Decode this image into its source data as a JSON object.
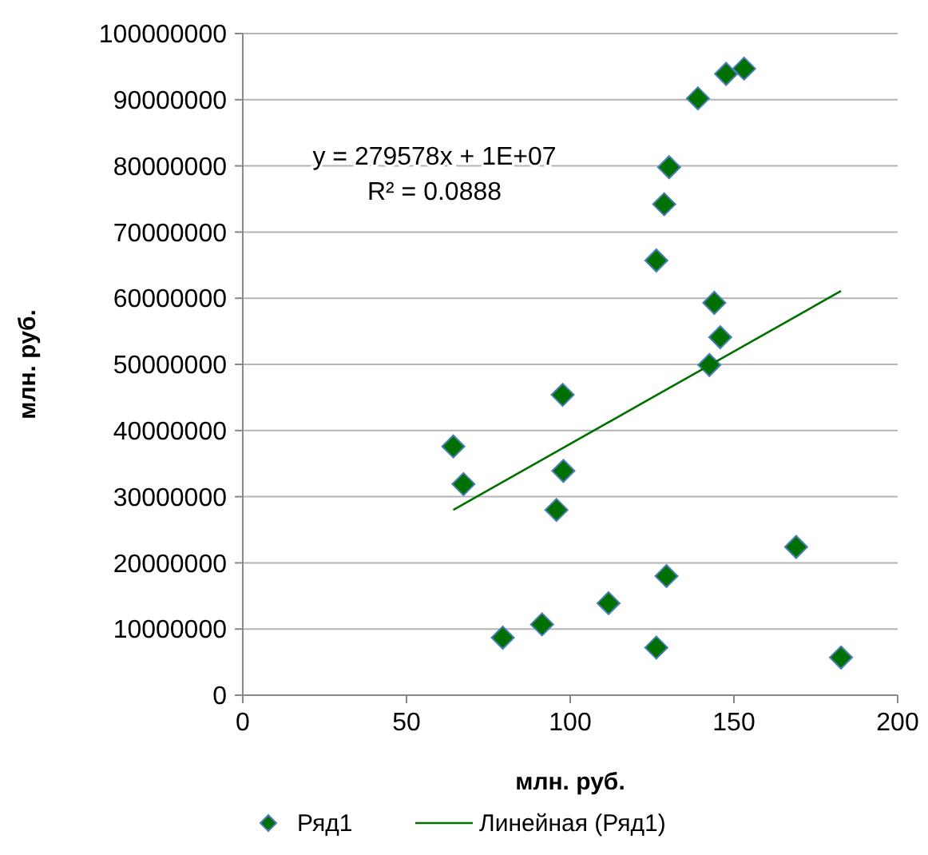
{
  "chart_data": {
    "type": "scatter",
    "xlabel": "млн. руб.",
    "ylabel": "млн. руб.",
    "xlim": [
      0,
      200
    ],
    "xticks": [
      0,
      50,
      100,
      150,
      200
    ],
    "ylim": [
      0,
      100000000
    ],
    "yticks": [
      0,
      10000000,
      20000000,
      30000000,
      40000000,
      50000000,
      60000000,
      70000000,
      80000000,
      90000000,
      100000000
    ],
    "grid": "y",
    "legend": "bottom",
    "marker": "diamond",
    "annotations": [
      "y = 279578x + 1E+07",
      "R² = 0.0888"
    ],
    "series": [
      {
        "name": "Ряд1",
        "color": "#007000",
        "x": [
          64.3,
          67.4,
          79.4,
          91.4,
          97.7,
          97.9,
          95.8,
          111.7,
          126.3,
          129.4,
          126.3,
          128.7,
          130.2,
          139,
          147.6,
          153.1,
          144,
          145.8,
          142.5,
          169,
          182.7
        ],
        "values": [
          37600000,
          31900000,
          8700000,
          10700000,
          45400000,
          33900000,
          28000000,
          13900000,
          7200000,
          18000000,
          65700000,
          74200000,
          79800000,
          90200000,
          93900000,
          94700000,
          59300000,
          54100000,
          49900000,
          22400000,
          5700000
        ]
      },
      {
        "name": "Линейная (Ряд1)",
        "type": "line",
        "color": "#007000",
        "line_style": "solid",
        "marker": "none",
        "x": [
          64.3,
          182.7
        ],
        "values": [
          28000000,
          61100000
        ]
      }
    ]
  }
}
